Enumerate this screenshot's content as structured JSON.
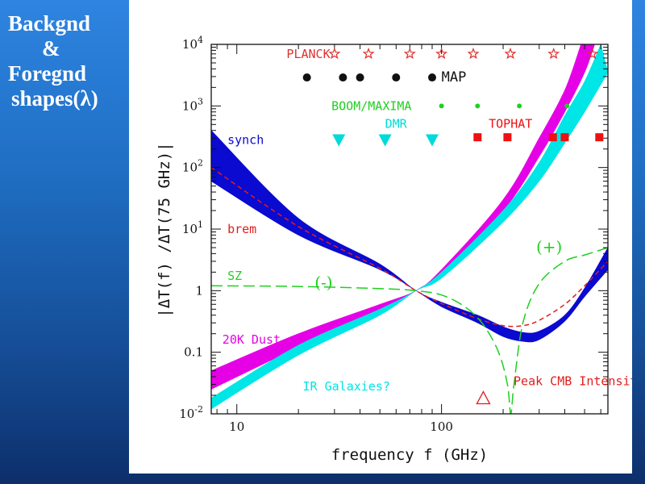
{
  "slide": {
    "title_lines": [
      "Backgnd",
      "&",
      "Foregnd",
      "shapes(λ)"
    ],
    "background_color": "#2277d8"
  },
  "chart_data": {
    "type": "line",
    "xlabel": "frequency f (GHz)",
    "ylabel": "|ΔT(f) /ΔT(75 GHz)|",
    "xscale": "log",
    "yscale": "log",
    "xlim": [
      7.5,
      650
    ],
    "ylim": [
      0.01,
      10000
    ],
    "x_ticks": [
      {
        "value": 10,
        "label": "10"
      },
      {
        "value": 100,
        "label": "100"
      }
    ],
    "y_ticks": [
      {
        "value": 0.01,
        "mant": "10",
        "exp": "-2"
      },
      {
        "value": 0.1,
        "mant": "0.1",
        "exp": ""
      },
      {
        "value": 1,
        "mant": "1",
        "exp": ""
      },
      {
        "value": 10,
        "mant": "10",
        "exp": "1"
      },
      {
        "value": 100,
        "mant": "10",
        "exp": "2"
      },
      {
        "value": 1000,
        "mant": "10",
        "exp": "3"
      },
      {
        "value": 10000,
        "mant": "10",
        "exp": "4"
      }
    ],
    "bands": [
      {
        "name": "synch",
        "color": "#0a0ad0",
        "label": {
          "x": 9.0,
          "y": 280
        },
        "lower": [
          [
            7.5,
            60
          ],
          [
            20,
            8
          ],
          [
            50,
            2.2
          ],
          [
            75,
            1.0
          ],
          [
            100,
            0.55
          ],
          [
            150,
            0.3
          ],
          [
            200,
            0.18
          ],
          [
            250,
            0.15
          ],
          [
            300,
            0.16
          ],
          [
            400,
            0.32
          ],
          [
            500,
            0.8
          ],
          [
            650,
            2.2
          ]
        ],
        "upper": [
          [
            7.5,
            400
          ],
          [
            20,
            15
          ],
          [
            50,
            2.7
          ],
          [
            75,
            1.0
          ],
          [
            100,
            0.65
          ],
          [
            150,
            0.4
          ],
          [
            200,
            0.26
          ],
          [
            250,
            0.21
          ],
          [
            300,
            0.22
          ],
          [
            400,
            0.4
          ],
          [
            500,
            1.1
          ],
          [
            650,
            5.0
          ]
        ]
      },
      {
        "name": "20K Dust",
        "color": "#e600e6",
        "label": {
          "x": 8.5,
          "y": 0.16
        },
        "lower": [
          [
            7.5,
            0.025
          ],
          [
            20,
            0.12
          ],
          [
            50,
            0.45
          ],
          [
            75,
            1.0
          ],
          [
            100,
            2.0
          ],
          [
            200,
            20
          ],
          [
            300,
            150
          ],
          [
            400,
            800
          ],
          [
            500,
            3500
          ],
          [
            560,
            10000
          ]
        ],
        "upper": [
          [
            7.5,
            0.05
          ],
          [
            20,
            0.2
          ],
          [
            50,
            0.6
          ],
          [
            75,
            1.0
          ],
          [
            100,
            2.2
          ],
          [
            200,
            30
          ],
          [
            300,
            300
          ],
          [
            400,
            1800
          ],
          [
            480,
            10000
          ]
        ]
      },
      {
        "name": "IR Galaxies?",
        "color": "#00e5e5",
        "label": {
          "x": 21,
          "y": 0.028
        },
        "lower": [
          [
            7.5,
            0.012
          ],
          [
            20,
            0.09
          ],
          [
            50,
            0.4
          ],
          [
            75,
            1.0
          ],
          [
            100,
            1.6
          ],
          [
            200,
            13
          ],
          [
            300,
            60
          ],
          [
            400,
            250
          ],
          [
            500,
            800
          ],
          [
            650,
            3500
          ]
        ],
        "upper": [
          [
            7.5,
            0.018
          ],
          [
            20,
            0.13
          ],
          [
            50,
            0.5
          ],
          [
            75,
            1.0
          ],
          [
            100,
            2.0
          ],
          [
            200,
            20
          ],
          [
            300,
            120
          ],
          [
            400,
            700
          ],
          [
            500,
            2500
          ],
          [
            600,
            10000
          ]
        ]
      }
    ],
    "lines": [
      {
        "name": "brem",
        "color": "#e11d1d",
        "dash": "6,4",
        "label": {
          "x": 9.0,
          "y": 10
        },
        "points": [
          [
            7.5,
            100
          ],
          [
            20,
            11
          ],
          [
            50,
            2.3
          ],
          [
            75,
            1.0
          ],
          [
            100,
            0.62
          ],
          [
            150,
            0.35
          ],
          [
            200,
            0.27
          ],
          [
            250,
            0.27
          ],
          [
            300,
            0.33
          ],
          [
            400,
            0.6
          ],
          [
            500,
            1.2
          ],
          [
            650,
            3.0
          ]
        ]
      },
      {
        "name": "SZ",
        "color": "#1fd01f",
        "dash": "14,6",
        "label": {
          "x": 9.0,
          "y": 1.75
        },
        "points": [
          [
            7.5,
            1.2
          ],
          [
            20,
            1.17
          ],
          [
            50,
            1.08
          ],
          [
            75,
            1.0
          ],
          [
            100,
            0.85
          ],
          [
            130,
            0.55
          ],
          [
            160,
            0.28
          ],
          [
            190,
            0.1
          ],
          [
            210,
            0.03
          ],
          [
            218,
            0.01
          ],
          [
            226,
            0.03
          ],
          [
            250,
            0.3
          ],
          [
            300,
            1.3
          ],
          [
            400,
            3.0
          ],
          [
            500,
            3.8
          ],
          [
            650,
            5.0
          ]
        ]
      }
    ],
    "experiments": [
      {
        "name": "PLANCK",
        "color": "#e03030",
        "marker": "star",
        "label": {
          "x": 17.5,
          "y": 7000
        },
        "points": [
          [
            30,
            7000
          ],
          [
            44,
            7000
          ],
          [
            70,
            7000
          ],
          [
            100,
            7000
          ],
          [
            143,
            7000
          ],
          [
            217,
            7000
          ],
          [
            353,
            7000
          ],
          [
            545,
            7000
          ]
        ]
      },
      {
        "name": "MAP",
        "color": "#111111",
        "marker": "circle",
        "label": {
          "x": 100,
          "y": 2900
        },
        "points": [
          [
            22,
            2900
          ],
          [
            33,
            2900
          ],
          [
            40,
            2900
          ],
          [
            60,
            2900
          ],
          [
            90,
            2900
          ]
        ]
      },
      {
        "name": "BOOM/MAXIMA",
        "color": "#1fd01f",
        "marker": "dot",
        "label": {
          "x": 29,
          "y": 1000
        },
        "points": [
          [
            100,
            1000
          ],
          [
            150,
            1000
          ],
          [
            240,
            1000
          ],
          [
            410,
            1000
          ]
        ]
      },
      {
        "name": "DMR",
        "color": "#00dada",
        "marker": "triangle",
        "label": {
          "x": 53,
          "y": 510
        },
        "points": [
          [
            31.5,
            280
          ],
          [
            53,
            280
          ],
          [
            90,
            280
          ]
        ]
      },
      {
        "name": "TOPHAT",
        "color": "#ee1111",
        "marker": "square",
        "label": {
          "x": 170,
          "y": 510
        },
        "points": [
          [
            150,
            310
          ],
          [
            210,
            310
          ],
          [
            350,
            310
          ],
          [
            400,
            310
          ],
          [
            590,
            310
          ]
        ]
      }
    ],
    "annotations": [
      {
        "text": "(-)",
        "color": "#1fd01f",
        "x": 24,
        "y": 1.32,
        "big": true
      },
      {
        "text": "(+)",
        "color": "#1fd01f",
        "x": 290,
        "y": 5.0,
        "big": true
      },
      {
        "text": "Peak CMB Intensity",
        "color": "#e11d1d",
        "x": 225,
        "y": 0.035,
        "big": false
      }
    ],
    "peak_marker": {
      "x": 160,
      "y": 0.018,
      "color": "#e11d1d"
    }
  }
}
